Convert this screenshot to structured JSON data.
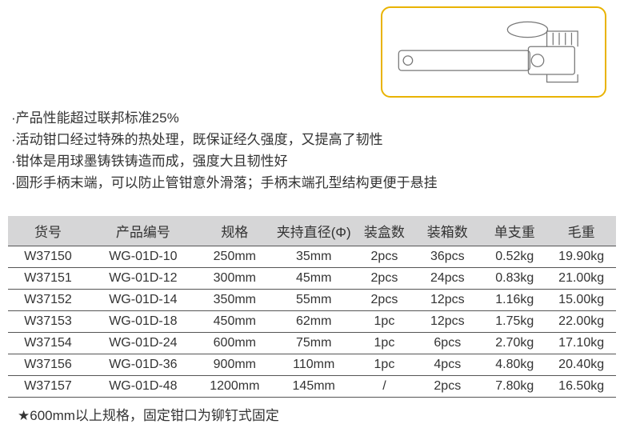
{
  "colors": {
    "image_border": "#e9b300",
    "header_bg": "#d6d6d7",
    "row_border": "#555555",
    "text": "#333333",
    "background": "#ffffff"
  },
  "features": [
    "·产品性能超过联邦标准25%",
    "·活动钳口经过特殊的热处理，既保证经久强度，又提高了韧性",
    "·钳体是用球墨铸铁铸造而成，强度大且韧性好",
    "·圆形手柄末端，可以防止管钳意外滑落；手柄末端孔型结构更便于悬挂"
  ],
  "table": {
    "columns": [
      "货号",
      "产品编号",
      "规格",
      "夹持直径(Φ)",
      "装盒数",
      "装箱数",
      "单支重",
      "毛重"
    ],
    "rows": [
      [
        "W37150",
        "WG-01D-10",
        "250mm",
        "35mm",
        "2pcs",
        "36pcs",
        "0.52kg",
        "19.90kg"
      ],
      [
        "W37151",
        "WG-01D-12",
        "300mm",
        "45mm",
        "2pcs",
        "24pcs",
        "0.83kg",
        "21.00kg"
      ],
      [
        "W37152",
        "WG-01D-14",
        "350mm",
        "55mm",
        "2pcs",
        "12pcs",
        "1.16kg",
        "15.00kg"
      ],
      [
        "W37153",
        "WG-01D-18",
        "450mm",
        "62mm",
        "1pc",
        "12pcs",
        "1.75kg",
        "22.00kg"
      ],
      [
        "W37154",
        "WG-01D-24",
        "600mm",
        "75mm",
        "1pc",
        "6pcs",
        "2.70kg",
        "17.10kg"
      ],
      [
        "W37156",
        "WG-01D-36",
        "900mm",
        "110mm",
        "1pc",
        "4pcs",
        "4.80kg",
        "20.40kg"
      ],
      [
        "W37157",
        "WG-01D-48",
        "1200mm",
        "145mm",
        "/",
        "2pcs",
        "7.80kg",
        "16.50kg"
      ]
    ]
  },
  "note": "★600mm以上规格，固定钳口为铆钉式固定"
}
